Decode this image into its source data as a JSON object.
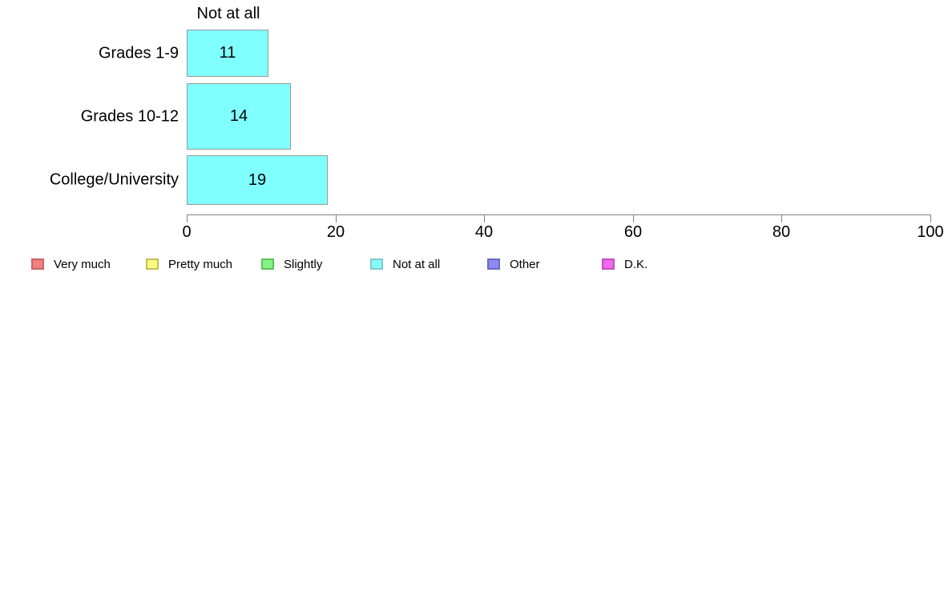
{
  "chart_data": {
    "type": "bar",
    "orientation": "horizontal",
    "title": "Not at all",
    "categories": [
      "Grades 1-9",
      "Grades 10-12",
      "College/University"
    ],
    "values": [
      11,
      14,
      19
    ],
    "xlabel": "",
    "ylabel": "",
    "xlim": [
      0,
      100
    ],
    "x_ticks": [
      0,
      20,
      40,
      60,
      80,
      100
    ],
    "grid": false,
    "bar_fill_color": "#80FFFF",
    "bar_border_color": "#9A9A9A",
    "axis_color": "#808080",
    "legend_position": "bottom",
    "legend": [
      {
        "label": "Very much",
        "color": "#F28080",
        "border": "#C86464"
      },
      {
        "label": "Pretty much",
        "color": "#FCFC80",
        "border": "#BEBE5A"
      },
      {
        "label": "Slightly",
        "color": "#84F484",
        "border": "#5FBE5F"
      },
      {
        "label": "Not at all",
        "color": "#84FCFC",
        "border": "#84C8CC"
      },
      {
        "label": "Other",
        "color": "#8C8CF0",
        "border": "#6A6AC8"
      },
      {
        "label": "D.K.",
        "color": "#F266F2",
        "border": "#C050C0"
      }
    ]
  }
}
